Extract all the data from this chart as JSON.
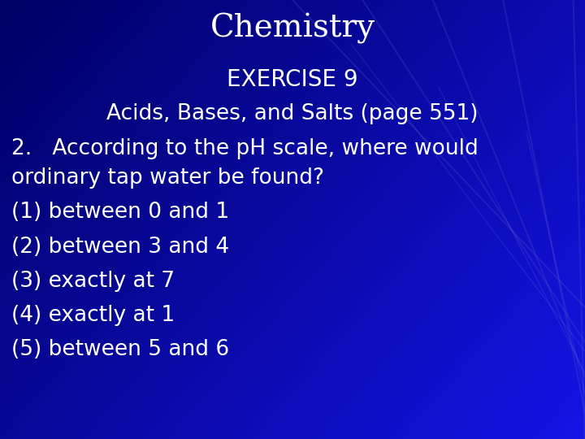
{
  "title": "Chemistry",
  "subtitle": "EXERCISE 9",
  "subsubtitle": "Acids, Bases, and Salts (page 551)",
  "question_line1": "2.   According to the pH scale, where would",
  "question_line2": "ordinary tap water be found?",
  "options": [
    "(1) between 0 and 1",
    "(2) between 3 and 4",
    "(3) exactly at 7",
    "(4) exactly at 1",
    "(5) between 5 and 6"
  ],
  "text_color": "#ffffff",
  "title_fontsize": 28,
  "subtitle_fontsize": 20,
  "subsubtitle_fontsize": 19,
  "question_fontsize": 19,
  "option_fontsize": 19,
  "figwidth": 7.2,
  "figheight": 5.4,
  "dpi": 100
}
